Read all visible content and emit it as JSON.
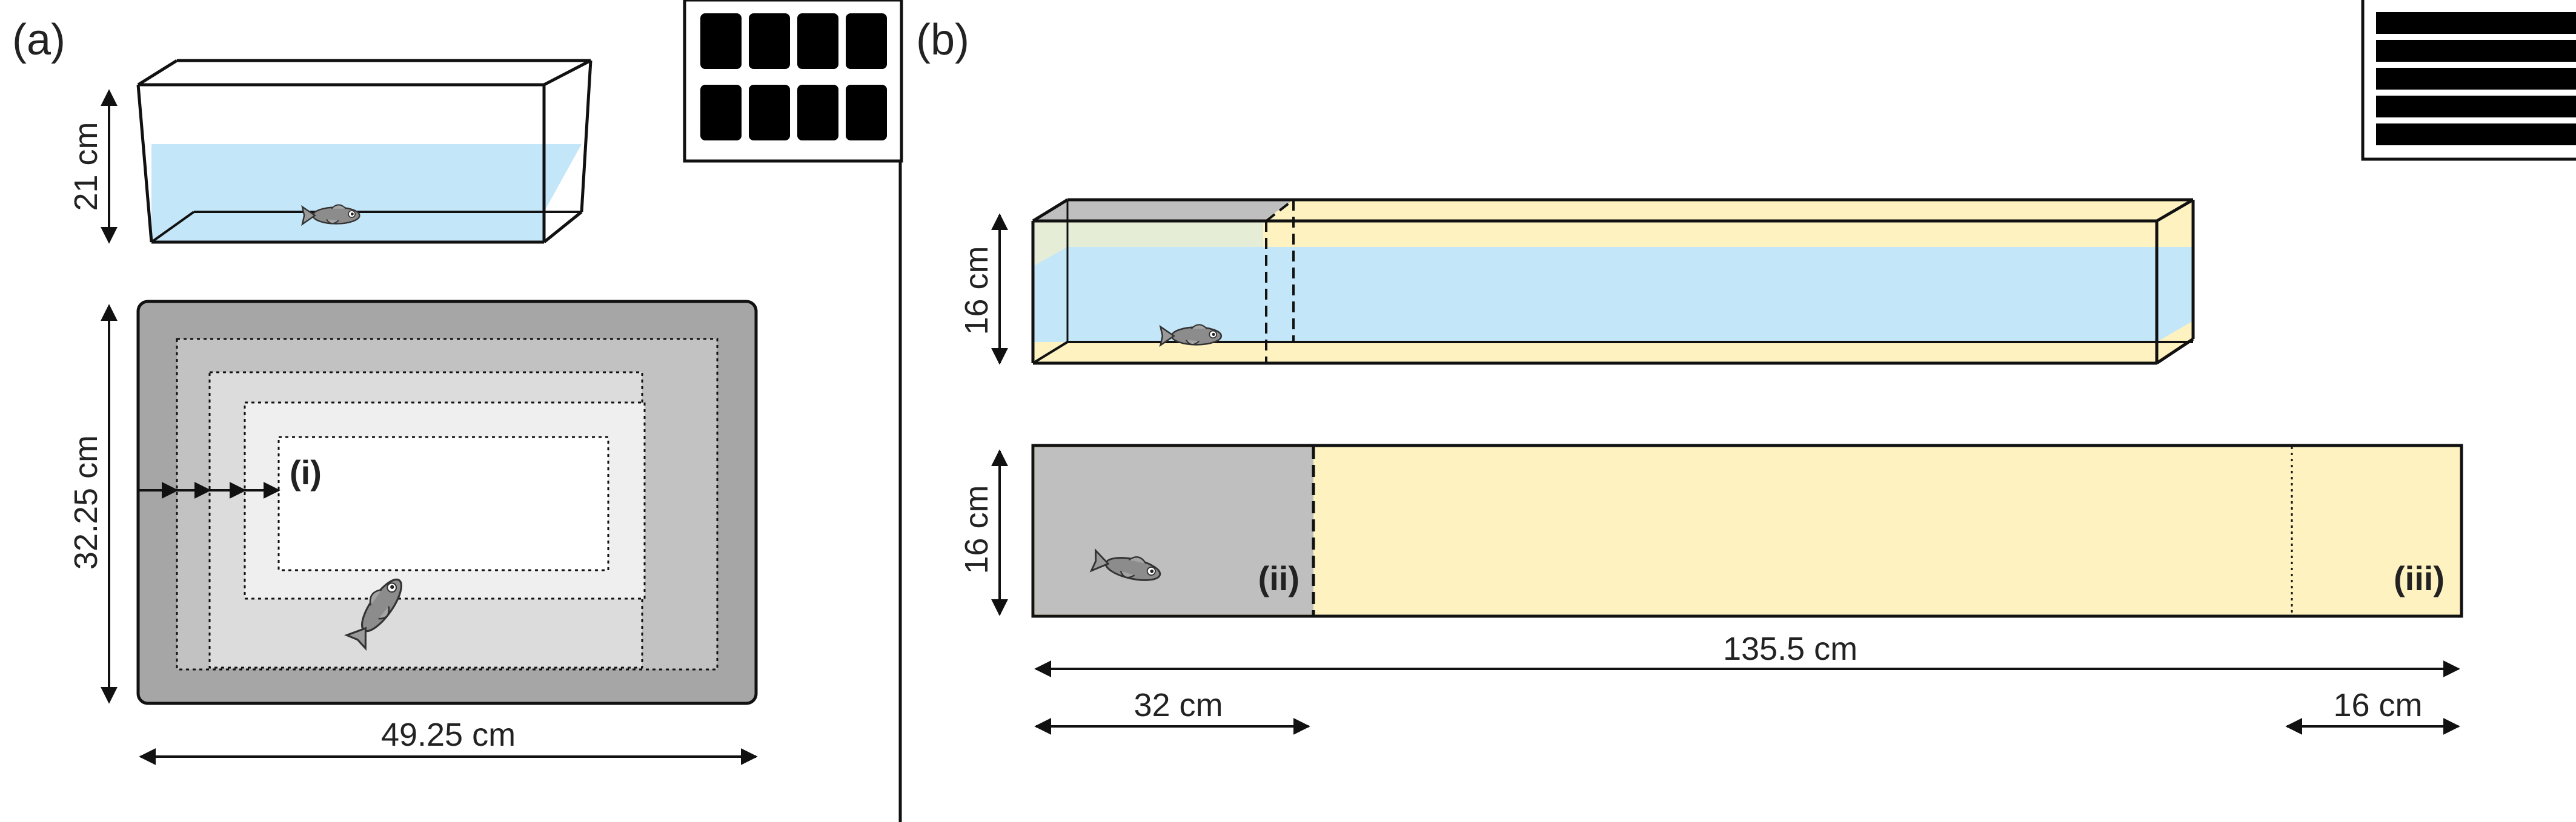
{
  "panels": {
    "a": {
      "label": "(a)",
      "side_view": {
        "height": "21 cm"
      },
      "top_view": {
        "height": "32.25 cm",
        "width": "49.25 cm",
        "zone_label": "(i)"
      }
    },
    "b": {
      "label": "(b)",
      "side_view": {
        "height": "16 cm"
      },
      "top_view": {
        "height": "16 cm",
        "total_length": "135.5 cm",
        "start_length": "32 cm",
        "end_length": "16 cm",
        "start_zone_label": "(ii)",
        "end_zone_label": "(iii)"
      }
    }
  },
  "colors": {
    "water": "#c3e6f8",
    "sand": "#fdf2c0",
    "gray_dark": "#a6a6a6",
    "gray_mid": "#c2c2c2",
    "gray_light": "#dcdcdc",
    "gray_lighter": "#efefef",
    "start_box": "#bfbfbf"
  },
  "icons": [
    "light-panel-4x2-icon",
    "light-panel-strips-icon",
    "fish-icon"
  ]
}
